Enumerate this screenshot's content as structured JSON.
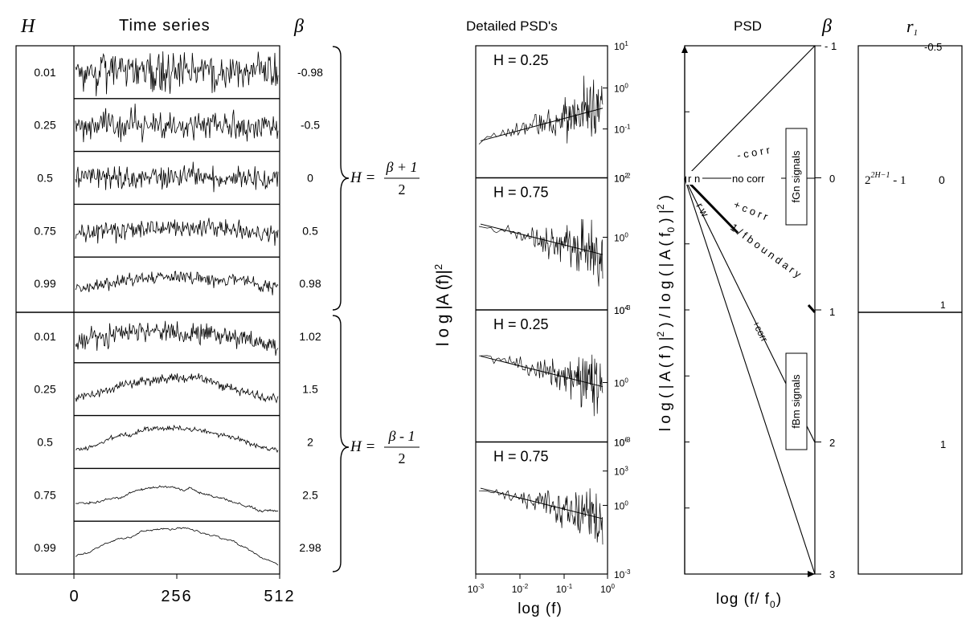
{
  "header": {
    "h_symbol": "H",
    "time_series_title": "Time series",
    "beta_symbol": "β",
    "psd_detail_title": "Detailed PSD's",
    "psd_title": "PSD",
    "beta_symbol_right": "β",
    "r_symbol": "r",
    "r_sub": "1"
  },
  "time_series": {
    "rows": [
      {
        "h": "0.01",
        "beta": "-0.98",
        "noise": 1.0,
        "drift": 0.0
      },
      {
        "h": "0.25",
        "beta": "-0.5",
        "noise": 0.85,
        "drift": 0.0
      },
      {
        "h": "0.5",
        "beta": "0",
        "noise": 0.7,
        "drift": 0.0
      },
      {
        "h": "0.75",
        "beta": "0.5",
        "noise": 0.55,
        "drift": 0.25
      },
      {
        "h": "0.99",
        "beta": "0.98",
        "noise": 0.35,
        "drift": 0.5
      },
      {
        "h": "0.01",
        "beta": "1.02",
        "noise": 0.6,
        "drift": 0.6
      },
      {
        "h": "0.25",
        "beta": "1.5",
        "noise": 0.25,
        "drift": 0.9
      },
      {
        "h": "0.5",
        "beta": "2",
        "noise": 0.12,
        "drift": 1.0
      },
      {
        "h": "0.75",
        "beta": "2.5",
        "noise": 0.05,
        "drift": 1.0
      },
      {
        "h": "0.99",
        "beta": "2.98",
        "noise": 0.02,
        "drift": 1.0
      }
    ],
    "x_ticks": [
      "0",
      "256",
      "512"
    ]
  },
  "formulas": {
    "fgn_lhs": "H =",
    "fgn_num": "β + 1",
    "fgn_den": "2",
    "fbm_lhs": "H =",
    "fbm_num": "β - 1",
    "fbm_den": "2"
  },
  "detailed_psd": {
    "ylabel": "l o g   |A (f)|2",
    "xlabel": "log (f)",
    "x_ticks": [
      "10-3",
      "10-2",
      "10-1",
      "100"
    ],
    "panels": [
      {
        "label": "H = 0.25",
        "ticks": [
          "101",
          "100",
          "10-1",
          "10-2"
        ]
      },
      {
        "label": "H = 0.75",
        "ticks": [
          "102",
          "100",
          "10-3"
        ]
      },
      {
        "label": "H = 0.25",
        "ticks": [
          "104",
          "100",
          "10-3"
        ]
      },
      {
        "label": "H = 0.75",
        "ticks": [
          "106",
          "103",
          "100",
          "10-3"
        ]
      }
    ]
  },
  "psd": {
    "ylabel": "l o g ( | A ( f ) |2 ) / l o g ( | A ( f0 ) |2 )",
    "xlabel": "log (f/ f0)",
    "beta_ticks": [
      "- 1",
      "0",
      "1",
      "2",
      "3"
    ],
    "labels": {
      "neg_corr": "- c o r r",
      "rn": "r n",
      "no_corr": "no corr",
      "pos_corr": "+ c o r r",
      "one_over_f": "1 / f  b o u n d a r y",
      "rw": "r w",
      "pos_corr_fbm": "+corr",
      "fgn_signals": "fGn signals",
      "fbm_signals": "fBm signals"
    }
  },
  "r1": {
    "top": "-0.5",
    "formula": "22H-1 - 1",
    "zero": "0",
    "one_line": "1",
    "lower": "1"
  }
}
